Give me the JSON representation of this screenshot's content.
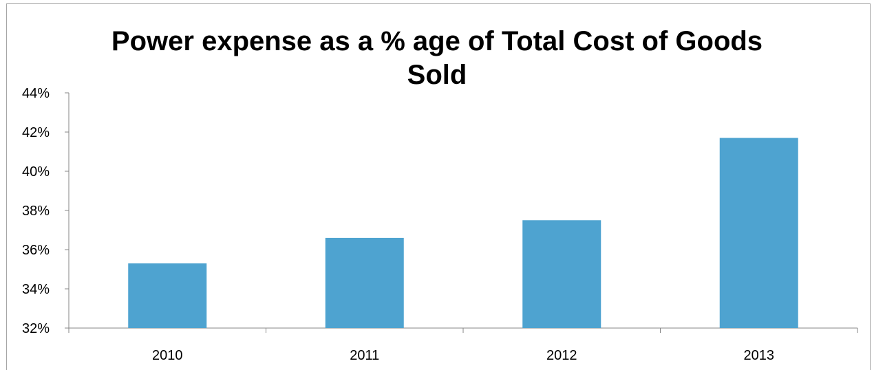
{
  "chart_data": {
    "type": "bar",
    "title_line1": "Power expense as a % age of Total Cost of Goods",
    "title_line2": "Sold",
    "categories": [
      "2010",
      "2011",
      "2012",
      "2013"
    ],
    "values": [
      35.3,
      36.6,
      37.5,
      41.7
    ],
    "ylim": [
      32,
      44
    ],
    "yticks": [
      32,
      34,
      36,
      38,
      40,
      42,
      44
    ],
    "ytick_labels": [
      "32%",
      "34%",
      "36%",
      "38%",
      "40%",
      "42%",
      "44%"
    ],
    "unit": "%",
    "grid": false,
    "legend": "none",
    "bar_color": "#4ea3d0"
  }
}
